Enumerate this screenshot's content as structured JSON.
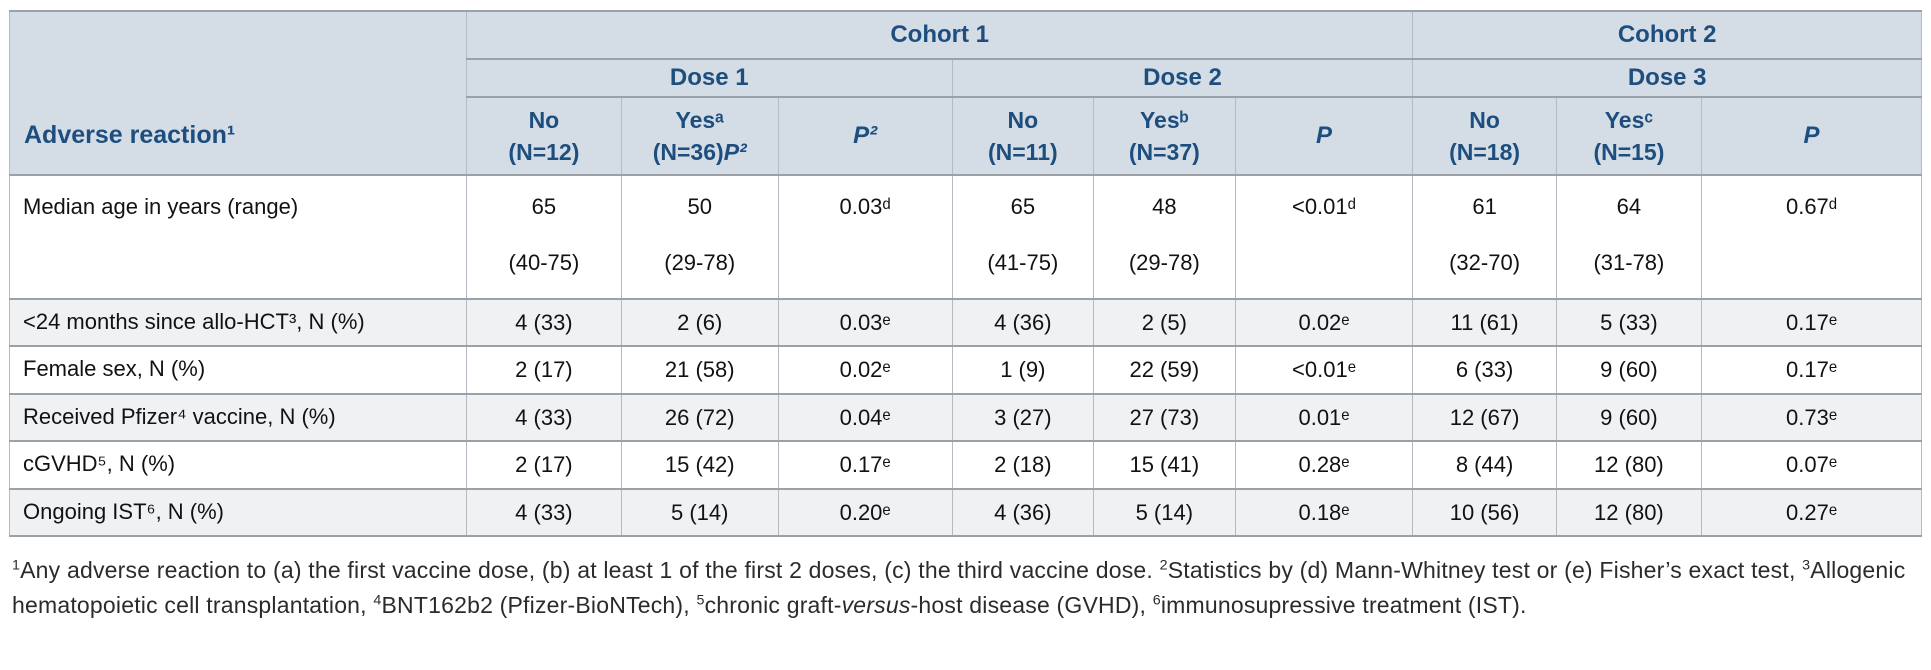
{
  "table": {
    "row_header_label": "Adverse reaction¹",
    "cohort1_label": "Cohort 1",
    "cohort2_label": "Cohort 2",
    "dose1_label": "Dose 1",
    "dose2_label": "Dose 2",
    "dose3_label": "Dose 3",
    "columns": [
      {
        "top": "No",
        "bottom": "(N=12)"
      },
      {
        "top": "Yesᵃ",
        "bottom": "(N=36)",
        "suffix": "P²"
      },
      {
        "p": "P²"
      },
      {
        "top": "No",
        "bottom": "(N=11)"
      },
      {
        "top": "Yesᵇ",
        "bottom": "(N=37)"
      },
      {
        "p": "P"
      },
      {
        "top": "No",
        "bottom": "(N=18)"
      },
      {
        "top": "Yesᶜ",
        "bottom": "(N=15)"
      },
      {
        "p": "P"
      }
    ],
    "rows": [
      {
        "label": "Median age in years (range)",
        "values": [
          "65\n(40-75)",
          "50\n(29-78)",
          "0.03ᵈ",
          "65\n(41-75)",
          "48\n(29-78)",
          "<0.01ᵈ",
          "61\n(32-70)",
          "64\n(31-78)",
          "0.67ᵈ"
        ]
      },
      {
        "label": "<24 months since allo-HCT³, N (%)",
        "values": [
          "4 (33)",
          "2 (6)",
          "0.03ᵉ",
          "4 (36)",
          "2 (5)",
          "0.02ᵉ",
          "11 (61)",
          "5 (33)",
          "0.17ᵉ"
        ]
      },
      {
        "label": "Female sex, N (%)",
        "values": [
          "2 (17)",
          "21 (58)",
          "0.02ᵉ",
          "1 (9)",
          "22 (59)",
          "<0.01ᵉ",
          "6 (33)",
          "9 (60)",
          "0.17ᵉ"
        ]
      },
      {
        "label": "Received Pfizer⁴ vaccine, N (%)",
        "values": [
          "4 (33)",
          "26 (72)",
          "0.04ᵉ",
          "3 (27)",
          "27 (73)",
          "0.01ᵉ",
          "12 (67)",
          "9 (60)",
          "0.73ᵉ"
        ]
      },
      {
        "label": "cGVHD⁵, N (%)",
        "values": [
          "2 (17)",
          "15 (42)",
          "0.17ᵉ",
          "2 (18)",
          "15 (41)",
          "0.28ᵉ",
          "8 (44)",
          "12 (80)",
          "0.07ᵉ"
        ]
      },
      {
        "label": "Ongoing IST⁶, N (%)",
        "values": [
          "4 (33)",
          "5 (14)",
          "0.20ᵉ",
          "4 (36)",
          "5 (14)",
          "0.18ᵉ",
          "10 (56)",
          "12 (80)",
          "0.27ᵉ"
        ]
      }
    ]
  },
  "colors": {
    "header_bg": "#d4dde6",
    "header_text": "#1d4e7e",
    "alt_row_bg": "#f0f1f2",
    "border": "#9aa1a8"
  },
  "footnotes": [
    {
      "sup": "1"
    },
    {
      "t": "Any adverse reaction to (a) the first vaccine dose, (b) at least 1 of the first 2 doses, (c) the third vaccine dose. "
    },
    {
      "sup": "2"
    },
    {
      "t": "Statistics by (d) Mann-Whitney test or (e) Fisher’s exact test, "
    },
    {
      "sup": "3"
    },
    {
      "t": "Allogenic hematopoietic cell transplantation, "
    },
    {
      "sup": "4"
    },
    {
      "t": "BNT162b2 (Pfizer-BioNTech), "
    },
    {
      "sup": "5"
    },
    {
      "t": "chronic graft-"
    },
    {
      "i": "versus"
    },
    {
      "t": "-host disease (GVHD), "
    },
    {
      "sup": "6"
    },
    {
      "t": "immunosupressive treatment (IST)."
    }
  ]
}
